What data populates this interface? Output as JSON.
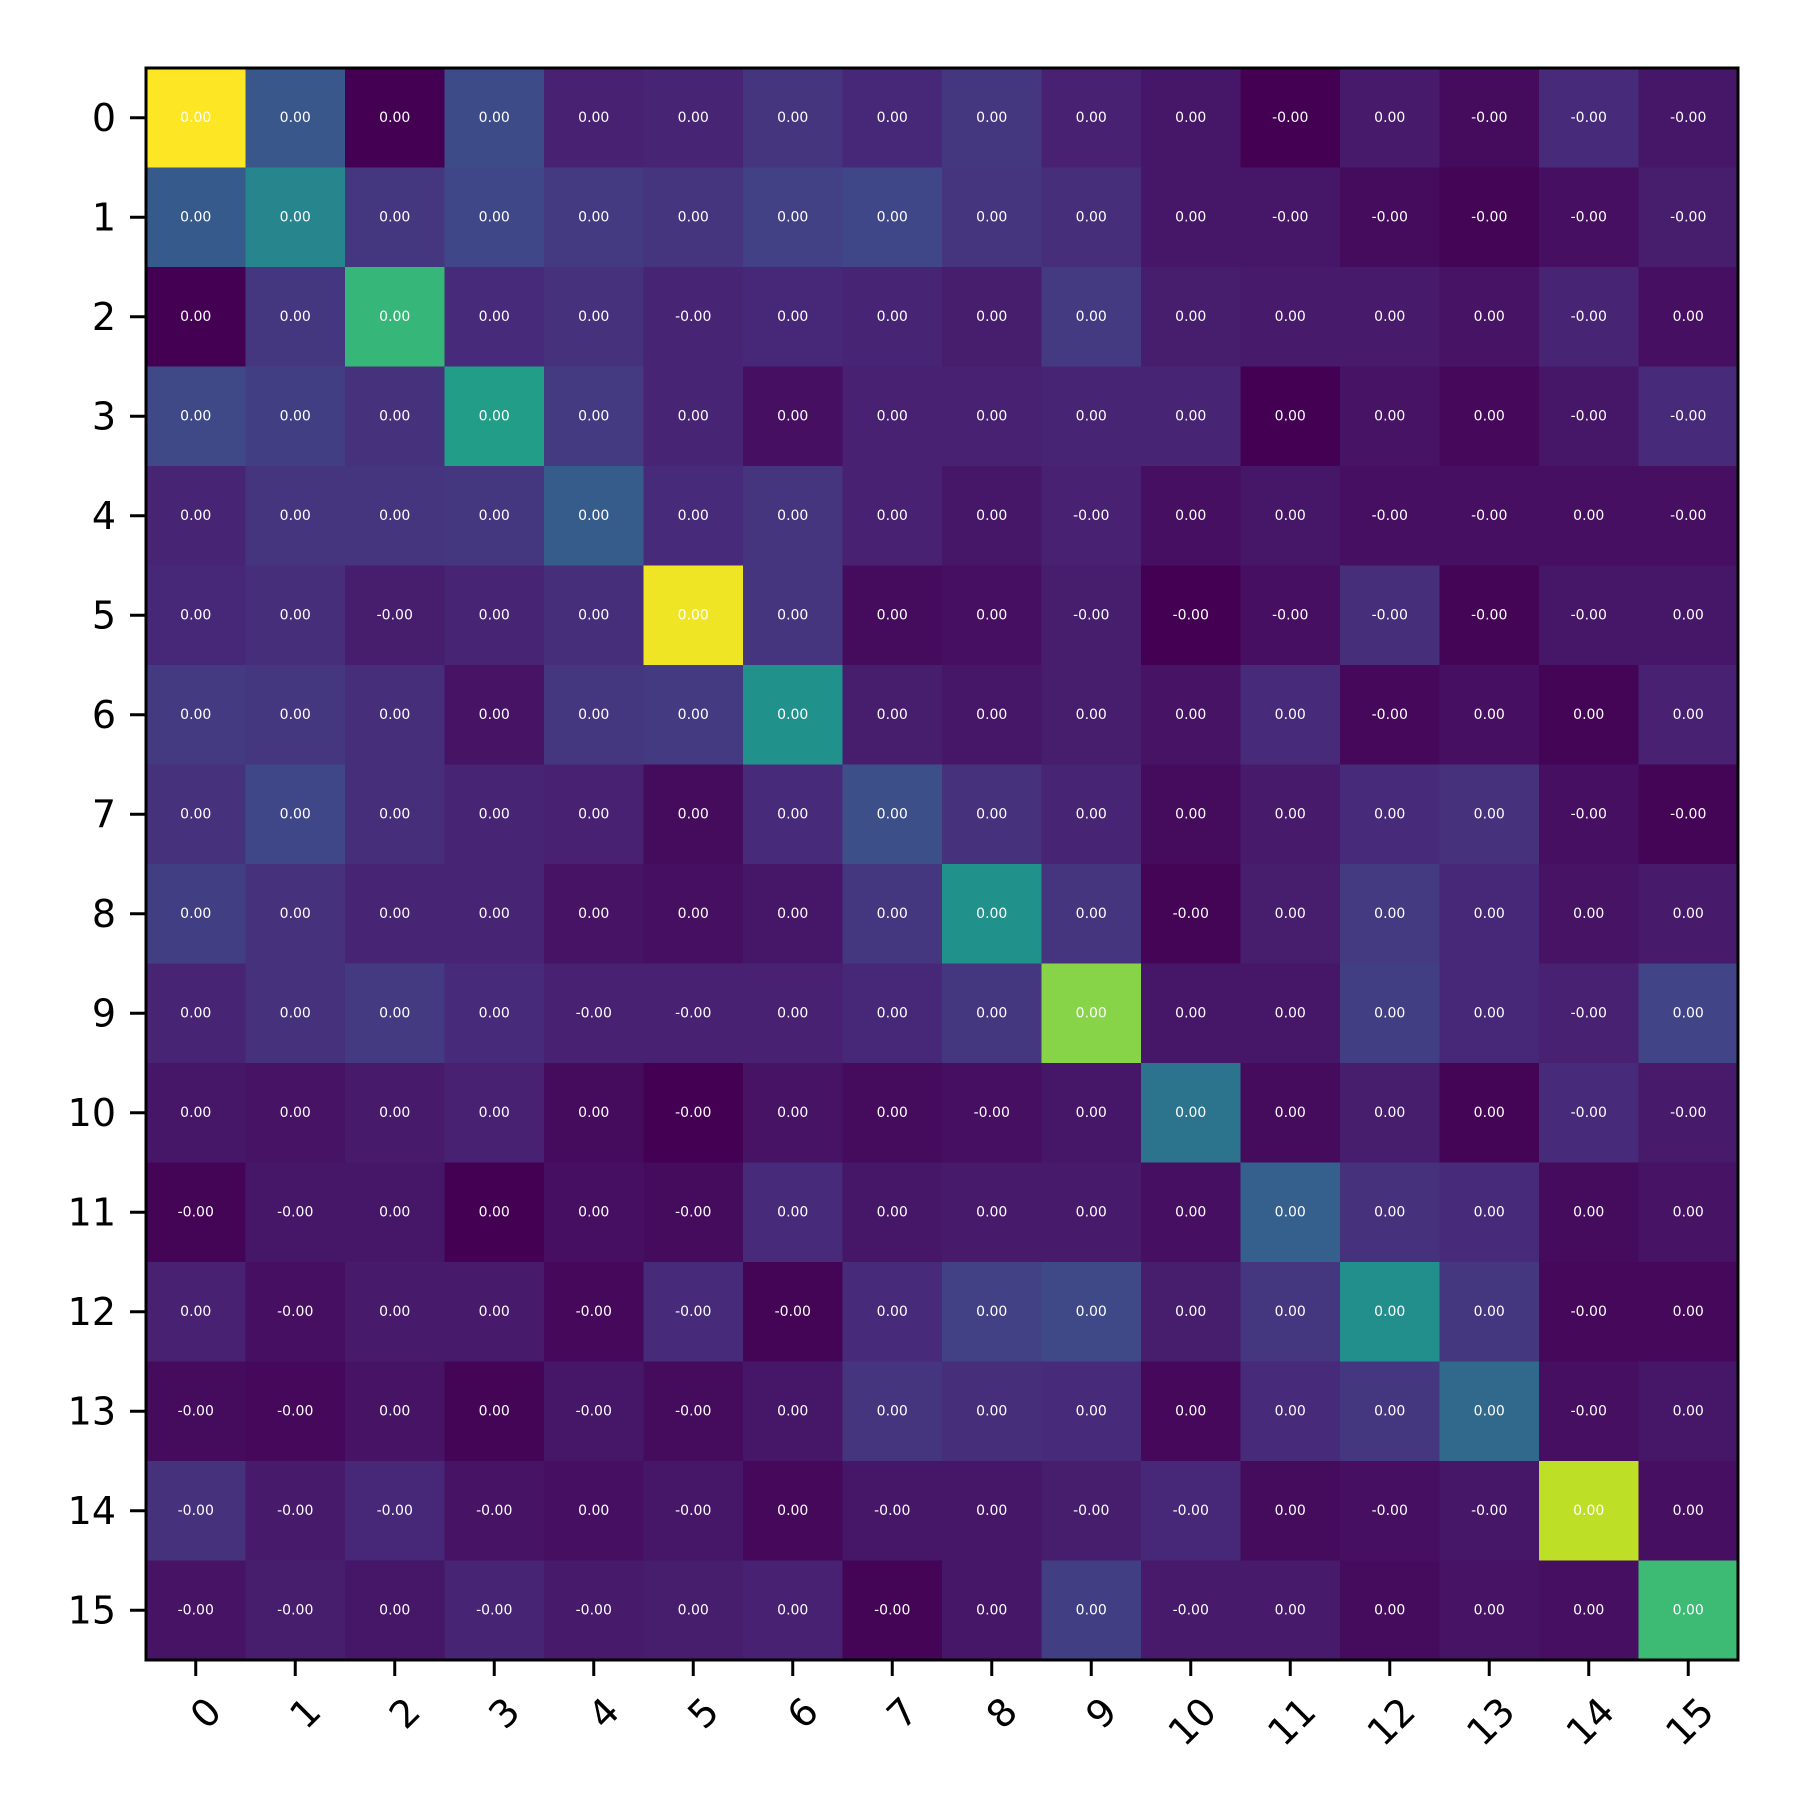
{
  "chart_data": {
    "type": "heatmap",
    "title": "",
    "xlabel": "",
    "ylabel": "",
    "x_categories": [
      "0",
      "1",
      "2",
      "3",
      "4",
      "5",
      "6",
      "7",
      "8",
      "9",
      "10",
      "11",
      "12",
      "13",
      "14",
      "15"
    ],
    "y_categories": [
      "0",
      "1",
      "2",
      "3",
      "4",
      "5",
      "6",
      "7",
      "8",
      "9",
      "10",
      "11",
      "12",
      "13",
      "14",
      "15"
    ],
    "colormap": "viridis",
    "value_range": [
      0,
      1
    ],
    "grid": false,
    "legend": "none",
    "intensity": [
      [
        1.0,
        0.27,
        0.0,
        0.23,
        0.09,
        0.1,
        0.15,
        0.11,
        0.16,
        0.09,
        0.06,
        0.0,
        0.07,
        0.03,
        0.12,
        0.06
      ],
      [
        0.28,
        0.45,
        0.16,
        0.21,
        0.17,
        0.15,
        0.19,
        0.21,
        0.15,
        0.13,
        0.06,
        0.06,
        0.03,
        0.01,
        0.04,
        0.08
      ],
      [
        0.0,
        0.16,
        0.66,
        0.12,
        0.14,
        0.1,
        0.11,
        0.1,
        0.08,
        0.17,
        0.08,
        0.07,
        0.07,
        0.05,
        0.1,
        0.04
      ],
      [
        0.22,
        0.18,
        0.14,
        0.55,
        0.17,
        0.1,
        0.04,
        0.09,
        0.09,
        0.1,
        0.1,
        0.0,
        0.05,
        0.02,
        0.06,
        0.12
      ],
      [
        0.1,
        0.15,
        0.15,
        0.16,
        0.29,
        0.12,
        0.15,
        0.09,
        0.06,
        0.09,
        0.04,
        0.06,
        0.04,
        0.04,
        0.04,
        0.04
      ],
      [
        0.11,
        0.13,
        0.08,
        0.1,
        0.13,
        0.98,
        0.15,
        0.03,
        0.04,
        0.08,
        0.0,
        0.04,
        0.13,
        0.01,
        0.06,
        0.06
      ],
      [
        0.17,
        0.16,
        0.13,
        0.05,
        0.16,
        0.17,
        0.5,
        0.08,
        0.06,
        0.08,
        0.05,
        0.12,
        0.02,
        0.04,
        0.01,
        0.09
      ],
      [
        0.14,
        0.21,
        0.13,
        0.1,
        0.09,
        0.03,
        0.12,
        0.24,
        0.14,
        0.1,
        0.03,
        0.07,
        0.12,
        0.14,
        0.04,
        0.01
      ],
      [
        0.18,
        0.14,
        0.1,
        0.1,
        0.05,
        0.04,
        0.06,
        0.16,
        0.5,
        0.15,
        0.01,
        0.08,
        0.17,
        0.11,
        0.05,
        0.07
      ],
      [
        0.1,
        0.14,
        0.17,
        0.12,
        0.09,
        0.09,
        0.09,
        0.11,
        0.16,
        0.82,
        0.06,
        0.06,
        0.18,
        0.11,
        0.09,
        0.2
      ],
      [
        0.06,
        0.05,
        0.07,
        0.09,
        0.03,
        0.0,
        0.05,
        0.03,
        0.04,
        0.06,
        0.38,
        0.03,
        0.08,
        0.01,
        0.12,
        0.07
      ],
      [
        0.01,
        0.06,
        0.06,
        0.0,
        0.04,
        0.03,
        0.12,
        0.06,
        0.07,
        0.07,
        0.04,
        0.3,
        0.14,
        0.12,
        0.03,
        0.05
      ],
      [
        0.09,
        0.04,
        0.07,
        0.07,
        0.02,
        0.12,
        0.01,
        0.12,
        0.19,
        0.22,
        0.08,
        0.16,
        0.49,
        0.16,
        0.02,
        0.02
      ],
      [
        0.03,
        0.02,
        0.05,
        0.01,
        0.06,
        0.03,
        0.06,
        0.15,
        0.13,
        0.12,
        0.02,
        0.12,
        0.16,
        0.34,
        0.04,
        0.06
      ],
      [
        0.14,
        0.07,
        0.11,
        0.05,
        0.04,
        0.06,
        0.02,
        0.06,
        0.06,
        0.08,
        0.11,
        0.03,
        0.04,
        0.06,
        0.9,
        0.04
      ],
      [
        0.05,
        0.08,
        0.06,
        0.1,
        0.07,
        0.08,
        0.09,
        0.01,
        0.06,
        0.18,
        0.07,
        0.07,
        0.03,
        0.05,
        0.04,
        0.68
      ]
    ],
    "cell_labels": [
      [
        "0.00",
        "0.00",
        "0.00",
        "0.00",
        "0.00",
        "0.00",
        "0.00",
        "0.00",
        "0.00",
        "0.00",
        "0.00",
        "-0.00",
        "0.00",
        "-0.00",
        "-0.00",
        "-0.00"
      ],
      [
        "0.00",
        "0.00",
        "0.00",
        "0.00",
        "0.00",
        "0.00",
        "0.00",
        "0.00",
        "0.00",
        "0.00",
        "0.00",
        "-0.00",
        "-0.00",
        "-0.00",
        "-0.00",
        "-0.00"
      ],
      [
        "0.00",
        "0.00",
        "0.00",
        "0.00",
        "0.00",
        "-0.00",
        "0.00",
        "0.00",
        "0.00",
        "0.00",
        "0.00",
        "0.00",
        "0.00",
        "0.00",
        "-0.00",
        "0.00"
      ],
      [
        "0.00",
        "0.00",
        "0.00",
        "0.00",
        "0.00",
        "0.00",
        "0.00",
        "0.00",
        "0.00",
        "0.00",
        "0.00",
        "0.00",
        "0.00",
        "0.00",
        "-0.00",
        "-0.00"
      ],
      [
        "0.00",
        "0.00",
        "0.00",
        "0.00",
        "0.00",
        "0.00",
        "0.00",
        "0.00",
        "0.00",
        "-0.00",
        "0.00",
        "0.00",
        "-0.00",
        "-0.00",
        "0.00",
        "-0.00"
      ],
      [
        "0.00",
        "0.00",
        "-0.00",
        "0.00",
        "0.00",
        "0.00",
        "0.00",
        "0.00",
        "0.00",
        "-0.00",
        "-0.00",
        "-0.00",
        "-0.00",
        "-0.00",
        "-0.00",
        "0.00"
      ],
      [
        "0.00",
        "0.00",
        "0.00",
        "0.00",
        "0.00",
        "0.00",
        "0.00",
        "0.00",
        "0.00",
        "0.00",
        "0.00",
        "0.00",
        "-0.00",
        "0.00",
        "0.00",
        "0.00"
      ],
      [
        "0.00",
        "0.00",
        "0.00",
        "0.00",
        "0.00",
        "0.00",
        "0.00",
        "0.00",
        "0.00",
        "0.00",
        "0.00",
        "0.00",
        "0.00",
        "0.00",
        "-0.00",
        "-0.00"
      ],
      [
        "0.00",
        "0.00",
        "0.00",
        "0.00",
        "0.00",
        "0.00",
        "0.00",
        "0.00",
        "0.00",
        "0.00",
        "-0.00",
        "0.00",
        "0.00",
        "0.00",
        "0.00",
        "0.00"
      ],
      [
        "0.00",
        "0.00",
        "0.00",
        "0.00",
        "-0.00",
        "-0.00",
        "0.00",
        "0.00",
        "0.00",
        "0.00",
        "0.00",
        "0.00",
        "0.00",
        "0.00",
        "-0.00",
        "0.00"
      ],
      [
        "0.00",
        "0.00",
        "0.00",
        "0.00",
        "0.00",
        "-0.00",
        "0.00",
        "0.00",
        "-0.00",
        "0.00",
        "0.00",
        "0.00",
        "0.00",
        "0.00",
        "-0.00",
        "-0.00"
      ],
      [
        "-0.00",
        "-0.00",
        "0.00",
        "0.00",
        "0.00",
        "-0.00",
        "0.00",
        "0.00",
        "0.00",
        "0.00",
        "0.00",
        "0.00",
        "0.00",
        "0.00",
        "0.00",
        "0.00"
      ],
      [
        "0.00",
        "-0.00",
        "0.00",
        "0.00",
        "-0.00",
        "-0.00",
        "-0.00",
        "0.00",
        "0.00",
        "0.00",
        "0.00",
        "0.00",
        "0.00",
        "0.00",
        "-0.00",
        "0.00"
      ],
      [
        "-0.00",
        "-0.00",
        "0.00",
        "0.00",
        "-0.00",
        "-0.00",
        "0.00",
        "0.00",
        "0.00",
        "0.00",
        "0.00",
        "0.00",
        "0.00",
        "0.00",
        "-0.00",
        "0.00"
      ],
      [
        "-0.00",
        "-0.00",
        "-0.00",
        "-0.00",
        "0.00",
        "-0.00",
        "0.00",
        "-0.00",
        "0.00",
        "-0.00",
        "-0.00",
        "0.00",
        "-0.00",
        "-0.00",
        "0.00",
        "0.00"
      ],
      [
        "-0.00",
        "-0.00",
        "0.00",
        "-0.00",
        "-0.00",
        "0.00",
        "0.00",
        "-0.00",
        "0.00",
        "0.00",
        "-0.00",
        "0.00",
        "0.00",
        "0.00",
        "0.00",
        "0.00"
      ]
    ]
  }
}
